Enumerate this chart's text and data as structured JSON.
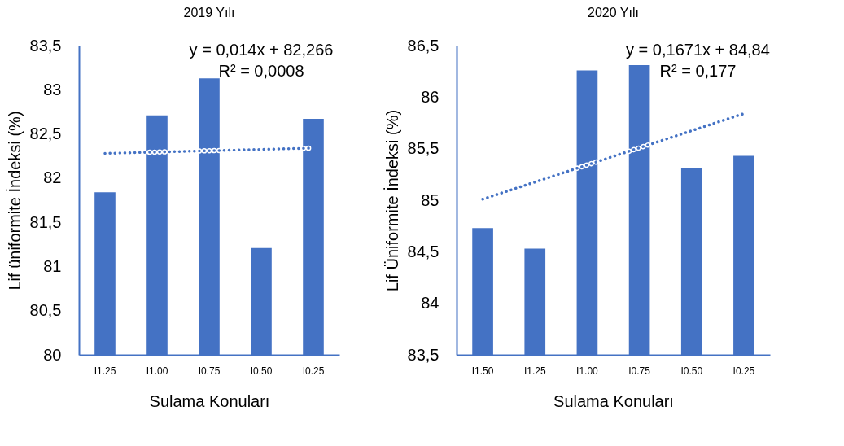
{
  "chart_data": [
    {
      "type": "bar",
      "title": "2019 Yılı",
      "xlabel": "Sulama Konuları",
      "ylabel": "Lif üniformite İndeksi (%)",
      "categories": [
        "I1.25",
        "I1.00",
        "I0.75",
        "I0.50",
        "I0.25"
      ],
      "ylim": [
        80,
        83.5
      ],
      "yticks": [
        80,
        {
          "value": 80.5,
          "label": "80,5"
        },
        81,
        {
          "value": 81.5,
          "label": "81,5"
        },
        82,
        {
          "value": 82.5,
          "label": "82,5"
        },
        83,
        {
          "value": 83.5,
          "label": "83,5"
        }
      ],
      "series": [
        {
          "color": "#4472c4",
          "values": [
            81.84,
            82.71,
            83.13,
            81.21,
            82.67
          ]
        },
        {
          "type": "line",
          "line_style": "dotted",
          "color": "#4472c4",
          "x": [
            "I1.25",
            "I0.25"
          ],
          "values": [
            82.28,
            82.34
          ]
        }
      ],
      "annotations": [
        "y = 0,014x + 82,266",
        "R² = 0,0008"
      ]
    },
    {
      "type": "bar",
      "title": "2020 Yılı",
      "xlabel": "Sulama Konuları",
      "ylabel": "Lif Üniformite İndeksi (%)",
      "categories": [
        "I1.50",
        "I1.25",
        "I1.00",
        "I0.75",
        "I0.50",
        "I0.25"
      ],
      "ylim": [
        83.5,
        86.5
      ],
      "yticks": [
        {
          "value": 83.5,
          "label": "83,5"
        },
        84,
        {
          "value": 84.5,
          "label": "84,5"
        },
        85,
        {
          "value": 85.5,
          "label": "85,5"
        },
        86,
        {
          "value": 86.5,
          "label": "86,5"
        }
      ],
      "series": [
        {
          "color": "#4472c4",
          "values": [
            84.73,
            84.53,
            86.26,
            86.31,
            85.31,
            85.43
          ]
        },
        {
          "type": "line",
          "line_style": "dotted",
          "color": "#4472c4",
          "x": [
            "I1.50",
            "I0.25"
          ],
          "values": [
            85.01,
            85.84
          ]
        }
      ],
      "annotations": [
        "y = 0,1671x + 84,84",
        "R² = 0,177"
      ]
    }
  ]
}
